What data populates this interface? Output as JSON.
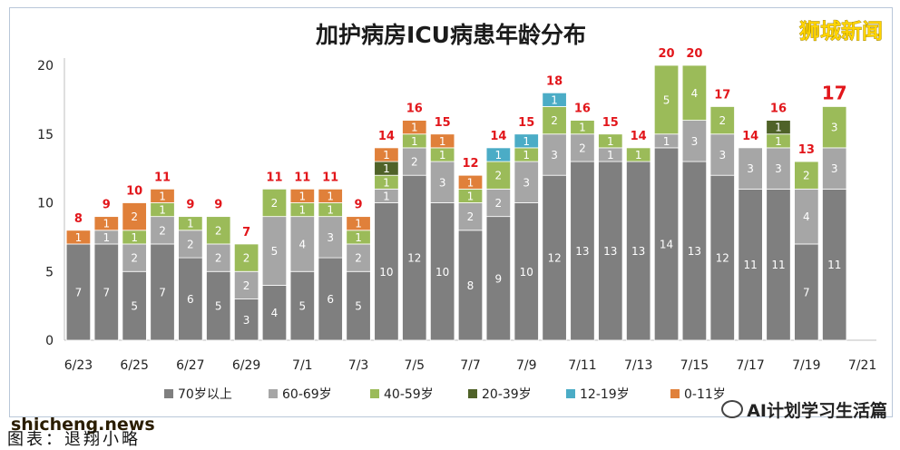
{
  "title": "加护病房ICU病患年龄分布",
  "brand": "狮城新闻",
  "watermark": "shicheng.news",
  "caption": "图表：退翔小略",
  "wechat_label": "AI计划学习生活篇",
  "colors": {
    "70岁以上": "#7f7f7f",
    "60-69岁": "#a6a6a6",
    "40-59岁": "#9bbb59",
    "20-39岁": "#4f6228",
    "12-19岁": "#4bacc6",
    "0-11岁": "#e0803a",
    "total": "#e2161b"
  },
  "chart_data": {
    "type": "bar",
    "stacked": true,
    "title": "加护病房ICU病患年龄分布",
    "categories": [
      "6/23",
      "6/24",
      "6/25",
      "6/26",
      "6/27",
      "6/28",
      "6/29",
      "6/30",
      "7/1",
      "7/2",
      "7/3",
      "7/4",
      "7/5",
      "7/6",
      "7/7",
      "7/8",
      "7/9",
      "7/10",
      "7/11",
      "7/12",
      "7/13",
      "7/14",
      "7/15",
      "7/16",
      "7/17",
      "7/18",
      "7/19",
      "7/20",
      "7/21"
    ],
    "x_tick_labels": [
      "6/23",
      "6/25",
      "6/27",
      "6/29",
      "7/1",
      "7/3",
      "7/5",
      "7/7",
      "7/9",
      "7/11",
      "7/13",
      "7/15",
      "7/17",
      "7/19",
      "7/21"
    ],
    "ylim": [
      0,
      20
    ],
    "yticks": [
      0,
      5,
      10,
      15,
      20
    ],
    "grid": false,
    "legend_position": "bottom",
    "series": [
      {
        "name": "70岁以上",
        "values": [
          7,
          7,
          5,
          7,
          6,
          5,
          3,
          4,
          5,
          6,
          5,
          10,
          12,
          10,
          8,
          9,
          10,
          12,
          13,
          13,
          13,
          14,
          13,
          12,
          11,
          11,
          7,
          11,
          null
        ]
      },
      {
        "name": "60-69岁",
        "values": [
          0,
          1,
          2,
          2,
          2,
          2,
          2,
          5,
          4,
          3,
          2,
          1,
          2,
          3,
          2,
          2,
          3,
          3,
          2,
          1,
          0,
          1,
          3,
          3,
          3,
          3,
          4,
          3,
          null
        ]
      },
      {
        "name": "40-59岁",
        "values": [
          0,
          0,
          1,
          1,
          1,
          2,
          2,
          2,
          1,
          1,
          1,
          1,
          1,
          1,
          1,
          2,
          1,
          2,
          1,
          1,
          1,
          5,
          4,
          2,
          0,
          1,
          2,
          3,
          null
        ]
      },
      {
        "name": "20-39岁",
        "values": [
          0,
          0,
          0,
          0,
          0,
          0,
          0,
          0,
          0,
          0,
          0,
          1,
          0,
          0,
          0,
          0,
          0,
          0,
          0,
          0,
          0,
          0,
          0,
          0,
          0,
          1,
          0,
          0,
          null
        ]
      },
      {
        "name": "12-19岁",
        "values": [
          0,
          0,
          0,
          0,
          0,
          0,
          0,
          0,
          0,
          0,
          0,
          0,
          0,
          0,
          0,
          1,
          1,
          1,
          0,
          0,
          0,
          0,
          0,
          0,
          0,
          0,
          0,
          0,
          null
        ]
      },
      {
        "name": "0-11岁",
        "values": [
          1,
          1,
          2,
          1,
          0,
          0,
          0,
          0,
          1,
          1,
          1,
          1,
          1,
          1,
          1,
          0,
          0,
          0,
          0,
          0,
          0,
          0,
          0,
          0,
          0,
          0,
          0,
          0,
          null
        ]
      }
    ],
    "totals": [
      8,
      9,
      10,
      11,
      9,
      9,
      7,
      11,
      11,
      11,
      9,
      14,
      16,
      15,
      12,
      14,
      15,
      18,
      16,
      15,
      14,
      20,
      20,
      17,
      14,
      16,
      13,
      17,
      null
    ]
  }
}
